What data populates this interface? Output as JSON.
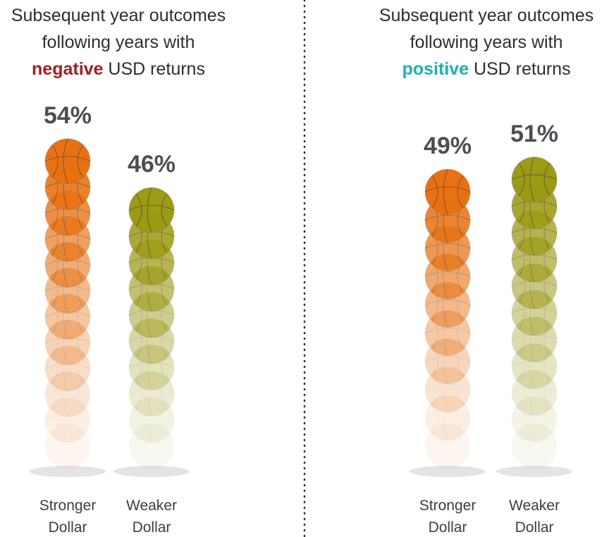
{
  "chart_data": [
    {
      "type": "bar",
      "title": [
        "Subsequent year outcomes",
        "following years with"
      ],
      "highlight": "negative",
      "highlight_color": "#a81c22",
      "title_end": "USD returns",
      "categories": [
        "Stronger Dollar",
        "Weaker Dollar"
      ],
      "values": [
        54,
        46
      ],
      "value_labels": [
        "54%",
        "46%"
      ],
      "colors": [
        "#e8700f",
        "#9c9a12"
      ]
    },
    {
      "type": "bar",
      "title": [
        "Subsequent year outcomes",
        "following years with"
      ],
      "highlight": "positive",
      "highlight_color": "#1ab3b0",
      "title_end": "USD returns",
      "categories": [
        "Stronger Dollar",
        "Weaker Dollar"
      ],
      "values": [
        49,
        51
      ],
      "value_labels": [
        "49%",
        "51%"
      ],
      "colors": [
        "#e8700f",
        "#9c9a12"
      ]
    }
  ]
}
